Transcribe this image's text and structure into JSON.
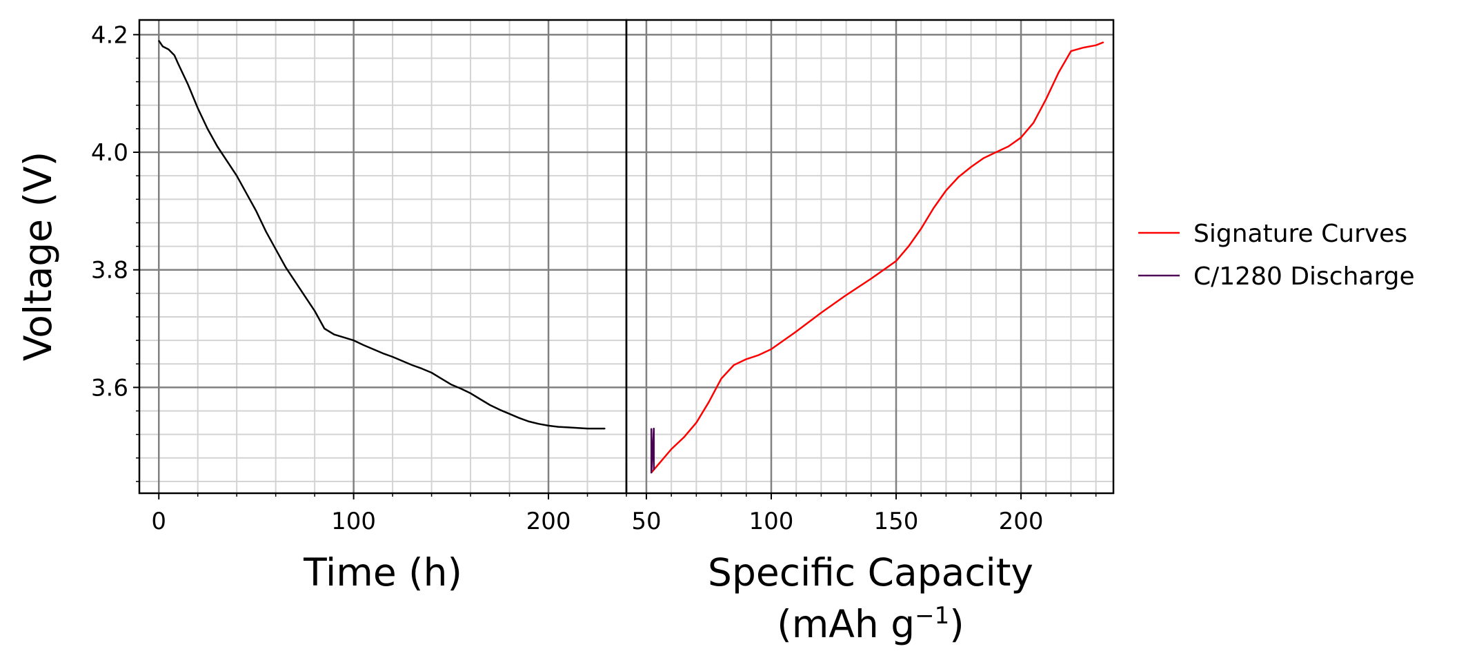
{
  "chart_data": [
    {
      "type": "line",
      "title": "",
      "xlabel": "Time (h)",
      "ylabel": "Voltage (V)",
      "xlim": [
        -10,
        240
      ],
      "ylim": [
        3.42,
        4.225
      ],
      "xticks": [
        0,
        100,
        200
      ],
      "xtick_labels": [
        "0",
        "100",
        "200"
      ],
      "yticks": [
        3.6,
        3.8,
        4.0,
        4.2
      ],
      "ytick_labels": [
        "3.6",
        "3.8",
        "4.0",
        "4.2"
      ],
      "grid": true,
      "series": [
        {
          "color": "#000000",
          "points": [
            [
              0,
              4.19
            ],
            [
              2,
              4.18
            ],
            [
              5,
              4.175
            ],
            [
              8,
              4.165
            ],
            [
              10,
              4.15
            ],
            [
              15,
              4.115
            ],
            [
              20,
              4.075
            ],
            [
              25,
              4.04
            ],
            [
              30,
              4.01
            ],
            [
              35,
              3.985
            ],
            [
              40,
              3.96
            ],
            [
              45,
              3.93
            ],
            [
              50,
              3.9
            ],
            [
              55,
              3.865
            ],
            [
              60,
              3.835
            ],
            [
              65,
              3.805
            ],
            [
              70,
              3.78
            ],
            [
              75,
              3.755
            ],
            [
              80,
              3.73
            ],
            [
              85,
              3.7
            ],
            [
              90,
              3.69
            ],
            [
              95,
              3.685
            ],
            [
              100,
              3.68
            ],
            [
              105,
              3.672
            ],
            [
              110,
              3.665
            ],
            [
              115,
              3.658
            ],
            [
              120,
              3.652
            ],
            [
              125,
              3.645
            ],
            [
              130,
              3.638
            ],
            [
              135,
              3.632
            ],
            [
              140,
              3.625
            ],
            [
              145,
              3.615
            ],
            [
              150,
              3.605
            ],
            [
              155,
              3.598
            ],
            [
              160,
              3.59
            ],
            [
              165,
              3.58
            ],
            [
              170,
              3.57
            ],
            [
              175,
              3.562
            ],
            [
              180,
              3.555
            ],
            [
              185,
              3.548
            ],
            [
              190,
              3.542
            ],
            [
              195,
              3.538
            ],
            [
              200,
              3.535
            ],
            [
              205,
              3.533
            ],
            [
              210,
              3.532
            ],
            [
              215,
              3.531
            ],
            [
              220,
              3.53
            ],
            [
              225,
              3.53
            ],
            [
              229,
              3.53
            ]
          ]
        }
      ]
    },
    {
      "type": "line",
      "title": "",
      "xlabel": "Specific Capacity (mAh g⁻¹)",
      "ylabel": "",
      "xlim": [
        42,
        237
      ],
      "ylim": [
        3.42,
        4.225
      ],
      "xticks": [
        50,
        100,
        150,
        200
      ],
      "xtick_labels": [
        "50",
        "100",
        "150",
        "200"
      ],
      "grid": true,
      "legend_position": "right, outside plot",
      "series": [
        {
          "name": "Signature Curves",
          "color": "#ff0000",
          "points": [
            [
              52,
              3.455
            ],
            [
              55,
              3.47
            ],
            [
              60,
              3.495
            ],
            [
              65,
              3.515
            ],
            [
              70,
              3.54
            ],
            [
              75,
              3.575
            ],
            [
              80,
              3.615
            ],
            [
              85,
              3.638
            ],
            [
              90,
              3.648
            ],
            [
              95,
              3.655
            ],
            [
              100,
              3.665
            ],
            [
              110,
              3.695
            ],
            [
              120,
              3.727
            ],
            [
              130,
              3.757
            ],
            [
              140,
              3.785
            ],
            [
              150,
              3.815
            ],
            [
              155,
              3.84
            ],
            [
              160,
              3.87
            ],
            [
              165,
              3.905
            ],
            [
              170,
              3.935
            ],
            [
              175,
              3.958
            ],
            [
              180,
              3.975
            ],
            [
              185,
              3.99
            ],
            [
              190,
              4.0
            ],
            [
              195,
              4.01
            ],
            [
              200,
              4.025
            ],
            [
              205,
              4.05
            ],
            [
              210,
              4.09
            ],
            [
              215,
              4.135
            ],
            [
              220,
              4.172
            ],
            [
              225,
              4.178
            ],
            [
              230,
              4.182
            ],
            [
              233,
              4.187
            ]
          ]
        },
        {
          "name": "C/1280 Discharge",
          "color": "#4b0055",
          "points": [
            [
              52,
              3.53
            ],
            [
              52,
              3.455
            ],
            [
              53,
              3.53
            ],
            [
              53,
              3.46
            ]
          ]
        }
      ]
    }
  ],
  "legend": {
    "items": [
      {
        "label": "Signature Curves",
        "color": "#ff0000"
      },
      {
        "label": "C/1280 Discharge",
        "color": "#4b0055"
      }
    ]
  },
  "axis_labels": {
    "y": "Voltage (V)",
    "x_left": "Time (h)",
    "x_right_line1": "Specific Capacity",
    "x_right_line2_main": "(mAh g",
    "x_right_line2_sup": "−1",
    "x_right_line2_end": ")"
  }
}
